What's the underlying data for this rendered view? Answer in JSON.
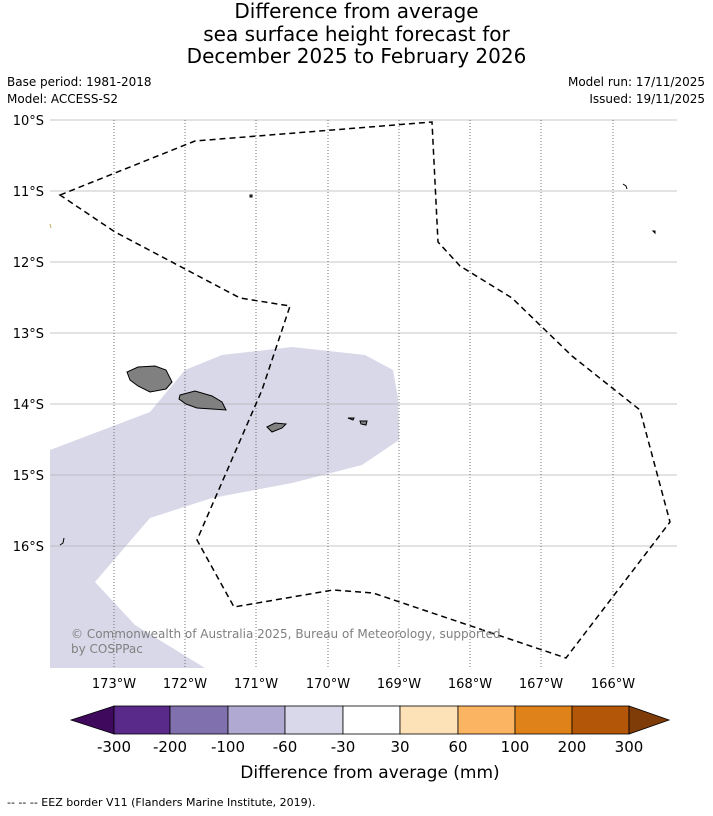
{
  "title": {
    "line1": "Difference from average",
    "line2": "sea surface height forecast for",
    "line3": "December 2025 to February 2026"
  },
  "meta": {
    "base_period": "Base period: 1981-2018",
    "model": "Model: ACCESS-S2",
    "model_run": "Model run: 17/11/2025",
    "issued": "Issued: 19/11/2025"
  },
  "map": {
    "lat_labels": [
      "10°S",
      "11°S",
      "12°S",
      "13°S",
      "14°S",
      "15°S",
      "16°S"
    ],
    "lon_labels": [
      "173°W",
      "172°W",
      "171°W",
      "170°W",
      "169°W",
      "168°W",
      "167°W",
      "166°W"
    ],
    "copyright_line1": "© Commonwealth of Australia 2025, Bureau of Meteorology, supported",
    "copyright_line2": "by COSPPac",
    "anomaly_region_category": "-60 to -30",
    "colors": {
      "land": "#808080",
      "anomaly_fill": "#d8d8e9",
      "gridline": "#b0b0b0",
      "eez": "#000000"
    }
  },
  "colorbar": {
    "label": "Difference from average (mm)",
    "ticks": [
      "-300",
      "-200",
      "-100",
      "-60",
      "-30",
      "30",
      "60",
      "100",
      "200",
      "300"
    ],
    "colors": [
      "#3f0a5e",
      "#5a2a8a",
      "#8170ae",
      "#b0a9d1",
      "#d8d8ea",
      "#ffffff",
      "#fde1b7",
      "#fbb461",
      "#e0821a",
      "#b35607",
      "#7f3b08"
    ]
  },
  "footer": {
    "legend": "--  --  -- EEZ border V11 (Flanders Marine Institute, 2019)."
  }
}
